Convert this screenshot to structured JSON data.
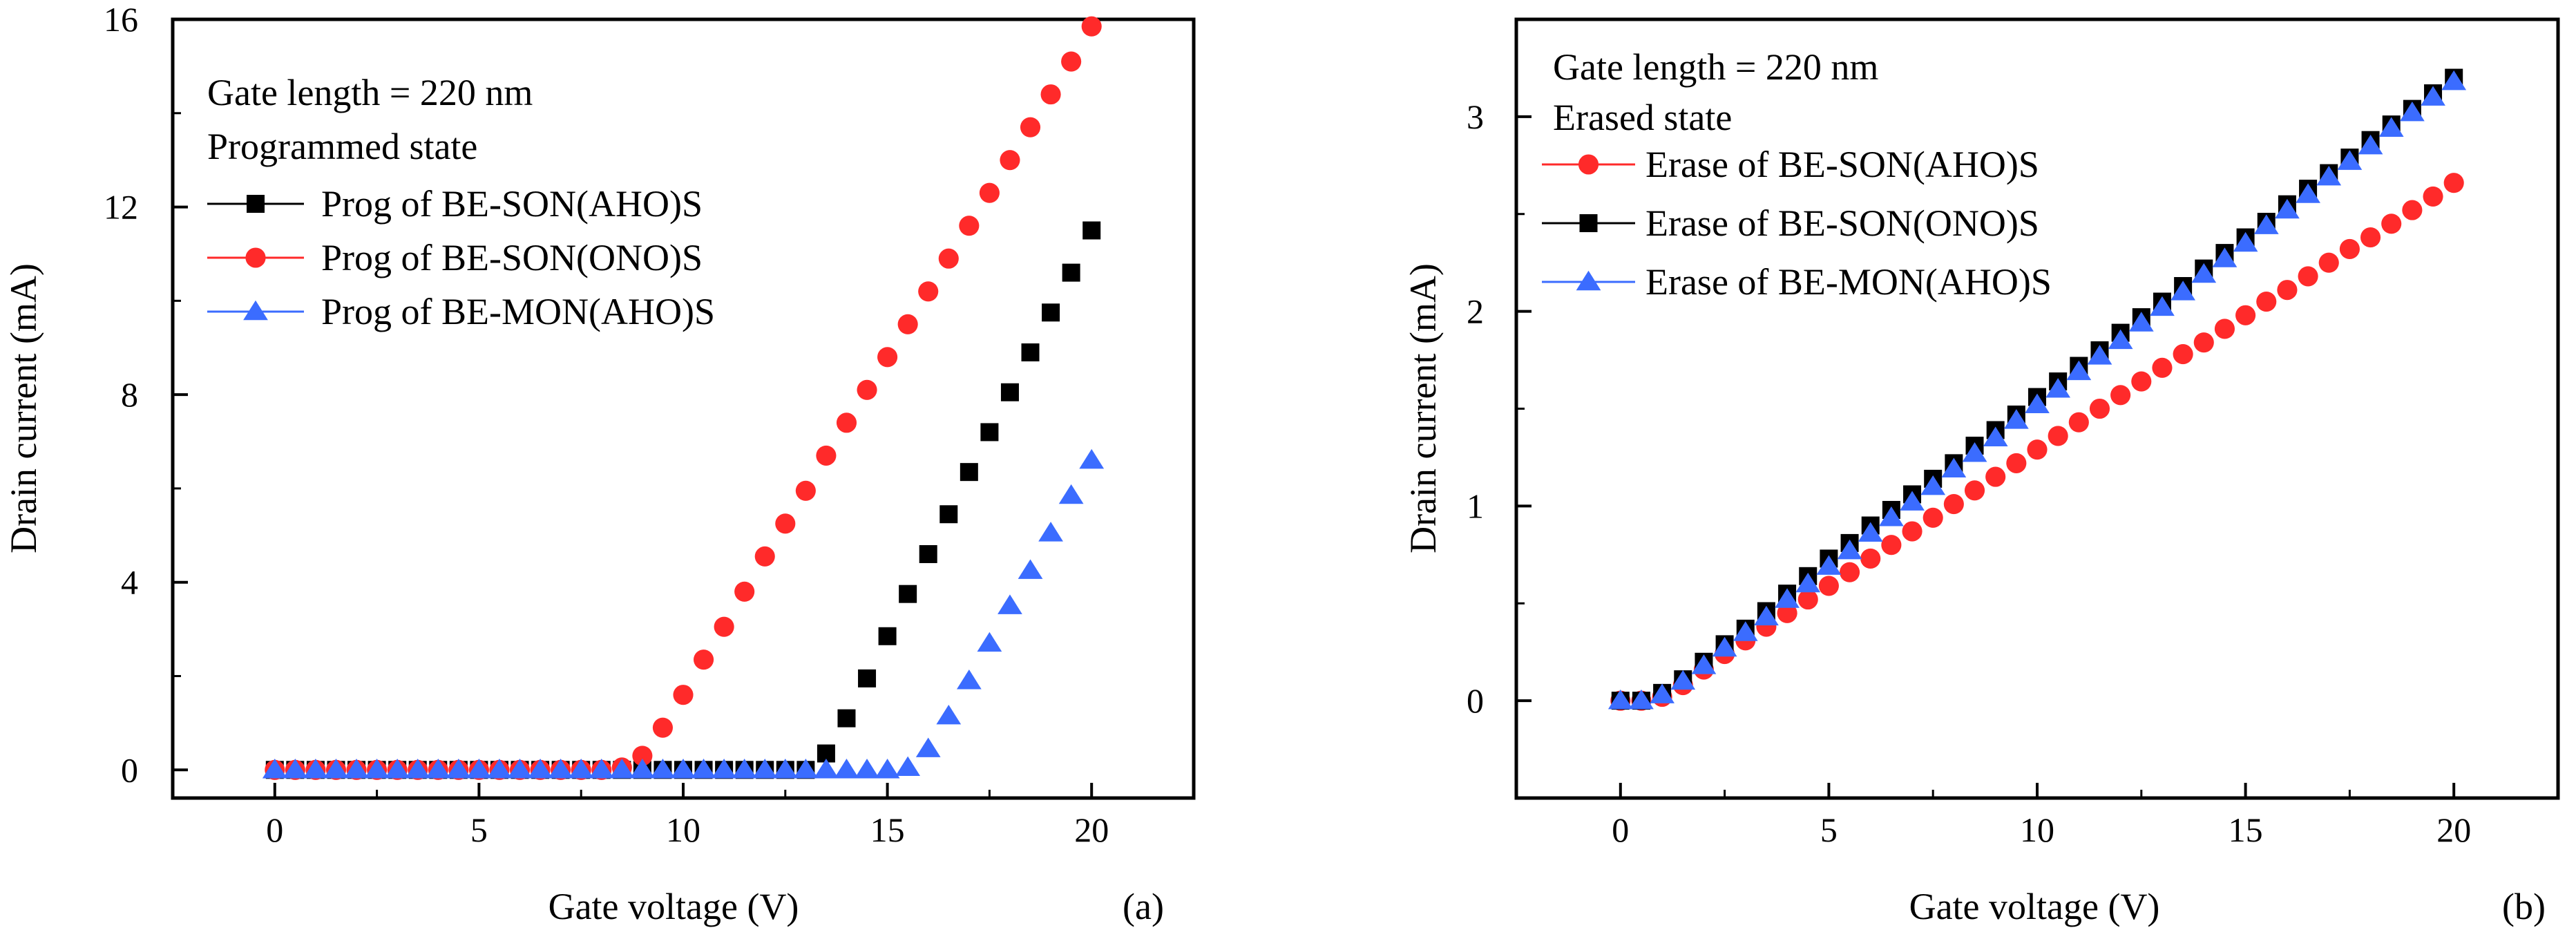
{
  "chart_data": [
    {
      "type": "scatter",
      "panel_label": "(a)",
      "xlabel": "Gate voltage (V)",
      "ylabel": "Drain current (mA)",
      "xlim": [
        -2.5,
        22.5
      ],
      "ylim": [
        -0.6,
        16
      ],
      "xticks": [
        0,
        5,
        10,
        15,
        20
      ],
      "yticks": [
        0,
        4,
        8,
        12,
        16
      ],
      "grid": false,
      "annotations": [
        "Gate length = 220 nm",
        "Programmed state"
      ],
      "legend_position": "top-left",
      "series": [
        {
          "name": "Prog of BE-SON(AHO)S",
          "color": "#000000",
          "marker": "square",
          "x": [
            0,
            0.5,
            1,
            1.5,
            2,
            2.5,
            3,
            3.5,
            4,
            4.5,
            5,
            5.5,
            6,
            6.5,
            7,
            7.5,
            8,
            8.5,
            9,
            9.5,
            10,
            10.5,
            11,
            11.5,
            12,
            12.5,
            13,
            13.5,
            14,
            14.5,
            15,
            15.5,
            16,
            16.5,
            17,
            17.5,
            18,
            18.5,
            19,
            19.5,
            20
          ],
          "y": [
            0,
            0,
            0,
            0,
            0,
            0,
            0,
            0,
            0,
            0,
            0,
            0,
            0,
            0,
            0,
            0,
            0,
            0,
            0,
            0,
            0,
            0,
            0,
            0,
            0,
            0,
            0,
            0.35,
            1.1,
            1.95,
            2.85,
            3.75,
            4.6,
            5.45,
            6.35,
            7.2,
            8.05,
            8.9,
            9.75,
            10.6,
            11.5
          ]
        },
        {
          "name": "Prog of BE-SON(ONO)S",
          "color": "#ff2a2a",
          "marker": "circle",
          "x": [
            0,
            0.5,
            1,
            1.5,
            2,
            2.5,
            3,
            3.5,
            4,
            4.5,
            5,
            5.5,
            6,
            6.5,
            7,
            7.5,
            8,
            8.5,
            9,
            9.5,
            10,
            10.5,
            11,
            11.5,
            12,
            12.5,
            13,
            13.5,
            14,
            14.5,
            15,
            15.5,
            16,
            16.5,
            17,
            17.5,
            18,
            18.5,
            19,
            19.5,
            20
          ],
          "y": [
            0,
            0,
            0,
            0,
            0,
            0,
            0,
            0,
            0,
            0,
            0,
            0,
            0,
            0,
            0,
            0,
            0,
            0.05,
            0.3,
            0.9,
            1.6,
            2.35,
            3.05,
            3.8,
            4.55,
            5.25,
            5.95,
            6.7,
            7.4,
            8.1,
            8.8,
            9.5,
            10.2,
            10.9,
            11.6,
            12.3,
            13.0,
            13.7,
            14.4,
            15.1,
            15.85
          ]
        },
        {
          "name": "Prog of BE-MON(AHO)S",
          "color": "#3b6cff",
          "marker": "triangle",
          "x": [
            0,
            0.5,
            1,
            1.5,
            2,
            2.5,
            3,
            3.5,
            4,
            4.5,
            5,
            5.5,
            6,
            6.5,
            7,
            7.5,
            8,
            8.5,
            9,
            9.5,
            10,
            10.5,
            11,
            11.5,
            12,
            12.5,
            13,
            13.5,
            14,
            14.5,
            15,
            15.5,
            16,
            16.5,
            17,
            17.5,
            18,
            18.5,
            19,
            19.5,
            20
          ],
          "y": [
            0,
            0,
            0,
            0,
            0,
            0,
            0,
            0,
            0,
            0,
            0,
            0,
            0,
            0,
            0,
            0,
            0,
            0,
            0,
            0,
            0,
            0,
            0,
            0,
            0,
            0,
            0,
            0,
            0,
            0,
            0,
            0.05,
            0.45,
            1.15,
            1.9,
            2.7,
            3.5,
            4.25,
            5.05,
            5.85,
            6.6
          ]
        }
      ]
    },
    {
      "type": "scatter",
      "panel_label": "(b)",
      "xlabel": "Gate voltage (V)",
      "ylabel": "Drain current (mA)",
      "xlim": [
        -2.5,
        22.5
      ],
      "ylim": [
        -0.5,
        3.5
      ],
      "xticks": [
        0,
        5,
        10,
        15,
        20
      ],
      "yticks": [
        0,
        1,
        2,
        3
      ],
      "grid": false,
      "annotations": [
        "Gate length = 220 nm",
        "Erased state"
      ],
      "legend_position": "top-left",
      "series": [
        {
          "name": "Erase of BE-SON(AHO)S",
          "color": "#ff2a2a",
          "marker": "circle",
          "x": [
            0,
            0.5,
            1,
            1.5,
            2,
            2.5,
            3,
            3.5,
            4,
            4.5,
            5,
            5.5,
            6,
            6.5,
            7,
            7.5,
            8,
            8.5,
            9,
            9.5,
            10,
            10.5,
            11,
            11.5,
            12,
            12.5,
            13,
            13.5,
            14,
            14.5,
            15,
            15.5,
            16,
            16.5,
            17,
            17.5,
            18,
            18.5,
            19,
            19.5,
            20
          ],
          "y": [
            0,
            0,
            0.02,
            0.08,
            0.16,
            0.24,
            0.31,
            0.38,
            0.45,
            0.52,
            0.59,
            0.66,
            0.73,
            0.8,
            0.87,
            0.94,
            1.01,
            1.08,
            1.15,
            1.22,
            1.29,
            1.36,
            1.43,
            1.5,
            1.57,
            1.64,
            1.71,
            1.78,
            1.84,
            1.91,
            1.98,
            2.05,
            2.11,
            2.18,
            2.25,
            2.32,
            2.38,
            2.45,
            2.52,
            2.59,
            2.66
          ]
        },
        {
          "name": "Erase of BE-SON(ONO)S",
          "color": "#000000",
          "marker": "square",
          "x": [
            0,
            0.5,
            1,
            1.5,
            2,
            2.5,
            3,
            3.5,
            4,
            4.5,
            5,
            5.5,
            6,
            6.5,
            7,
            7.5,
            8,
            8.5,
            9,
            9.5,
            10,
            10.5,
            11,
            11.5,
            12,
            12.5,
            13,
            13.5,
            14,
            14.5,
            15,
            15.5,
            16,
            16.5,
            17,
            17.5,
            18,
            18.5,
            19,
            19.5,
            20
          ],
          "y": [
            0,
            0,
            0.04,
            0.11,
            0.2,
            0.29,
            0.37,
            0.46,
            0.55,
            0.64,
            0.73,
            0.81,
            0.9,
            0.98,
            1.06,
            1.14,
            1.22,
            1.31,
            1.39,
            1.47,
            1.56,
            1.64,
            1.72,
            1.8,
            1.89,
            1.97,
            2.05,
            2.13,
            2.22,
            2.3,
            2.38,
            2.46,
            2.55,
            2.63,
            2.71,
            2.79,
            2.88,
            2.96,
            3.04,
            3.12,
            3.2
          ]
        },
        {
          "name": "Erase of BE-MON(AHO)S",
          "color": "#3b6cff",
          "marker": "triangle",
          "x": [
            0,
            0.5,
            1,
            1.5,
            2,
            2.5,
            3,
            3.5,
            4,
            4.5,
            5,
            5.5,
            6,
            6.5,
            7,
            7.5,
            8,
            8.5,
            9,
            9.5,
            10,
            10.5,
            11,
            11.5,
            12,
            12.5,
            13,
            13.5,
            14,
            14.5,
            15,
            15.5,
            16,
            16.5,
            17,
            17.5,
            18,
            18.5,
            19,
            19.5,
            20
          ],
          "y": [
            0,
            0,
            0.03,
            0.1,
            0.18,
            0.27,
            0.35,
            0.43,
            0.52,
            0.6,
            0.69,
            0.77,
            0.86,
            0.94,
            1.02,
            1.1,
            1.19,
            1.27,
            1.35,
            1.44,
            1.52,
            1.6,
            1.69,
            1.77,
            1.85,
            1.94,
            2.02,
            2.1,
            2.19,
            2.27,
            2.35,
            2.44,
            2.52,
            2.6,
            2.69,
            2.77,
            2.85,
            2.94,
            3.02,
            3.1,
            3.18
          ]
        }
      ]
    }
  ]
}
